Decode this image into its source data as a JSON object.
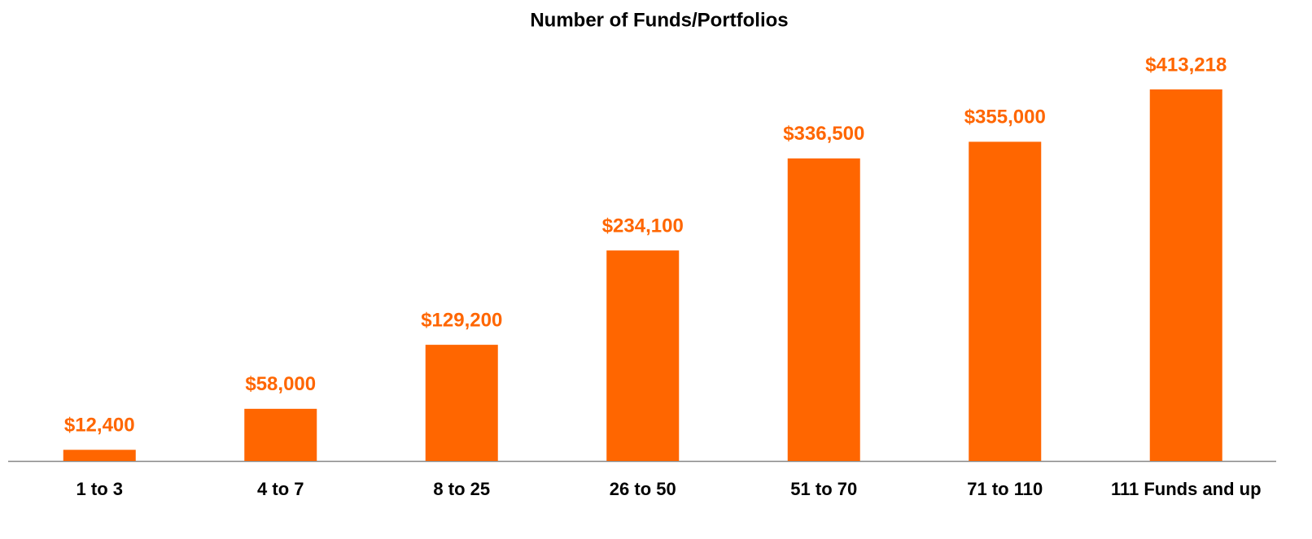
{
  "chart_data": {
    "type": "bar",
    "title": "Number of Funds/Portfolios",
    "categories": [
      "1 to 3",
      "4 to 7",
      "8 to 25",
      "26 to 50",
      "51 to 70",
      "71 to 110",
      "111 Funds and up"
    ],
    "values": [
      12400,
      58000,
      129200,
      234100,
      336500,
      355000,
      413218
    ],
    "value_labels": [
      "$12,400",
      "$58,000",
      "$129,200",
      "$234,100",
      "$336,500",
      "$355,000",
      "$413,218"
    ],
    "color": "#ff6600"
  }
}
